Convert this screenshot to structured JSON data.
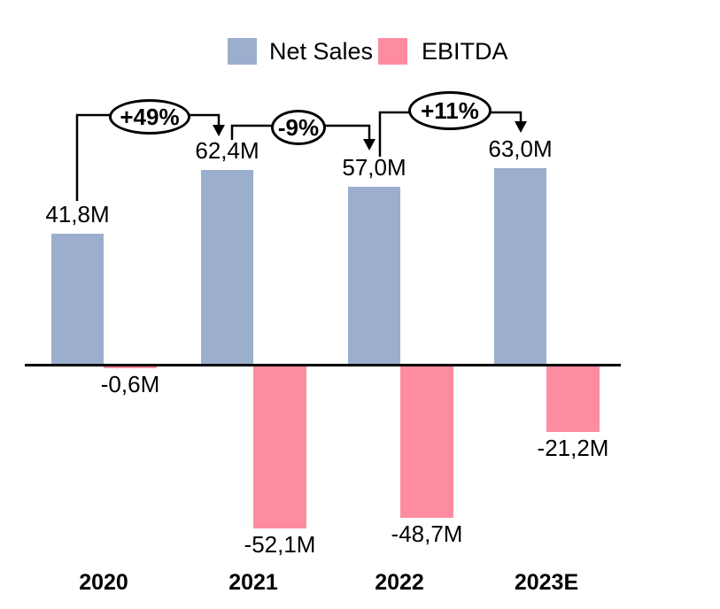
{
  "chart_data": {
    "type": "bar",
    "title": "",
    "categories": [
      "2020",
      "2021",
      "2022",
      "2023E"
    ],
    "series": [
      {
        "name": "Net Sales",
        "color": "#9CAECE",
        "values": [
          41.8,
          62.4,
          57.0,
          63.0
        ],
        "labels": [
          "41,8M",
          "62,4M",
          "57,0M",
          "63,0M"
        ]
      },
      {
        "name": "EBITDA",
        "color": "#FD8CA0",
        "values": [
          -0.6,
          -52.1,
          -48.7,
          -21.2
        ],
        "labels": [
          "-0,6M",
          "-52,1M",
          "-48,7M",
          "-21,2M"
        ]
      }
    ],
    "annotations": [
      {
        "label": "+49%",
        "from": "2020",
        "to": "2021"
      },
      {
        "label": "-9%",
        "from": "2021",
        "to": "2022"
      },
      {
        "label": "+11%",
        "from": "2022",
        "to": "2023E"
      }
    ],
    "unit": "M",
    "decimal_separator": ",",
    "ylim": [
      -60,
      70
    ],
    "grid": false,
    "legend_position": "top",
    "axis_color": "#000000"
  }
}
